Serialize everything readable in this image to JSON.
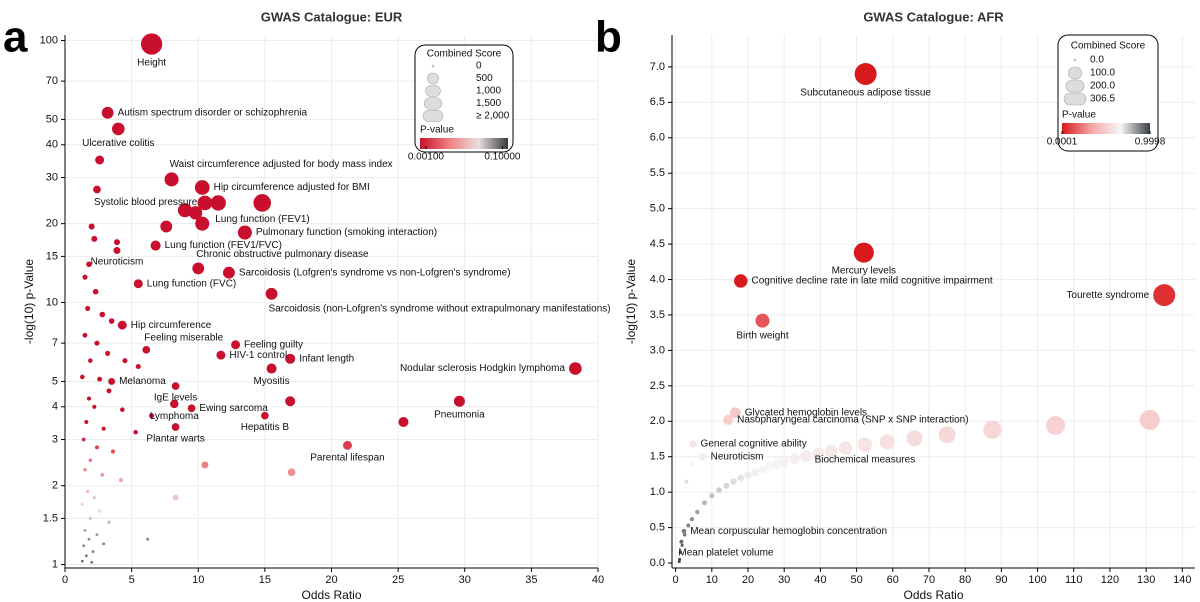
{
  "chart_data": [
    {
      "type": "scatter",
      "panel_label": "a",
      "title": "GWAS Catalogue: EUR",
      "x_label": "Odds Ratio",
      "y_label": "-log(10) p-Value",
      "log_y": true,
      "grid": true,
      "xlim": [
        0,
        40
      ],
      "ylim": [
        0.97,
        105
      ],
      "xticks": [
        0,
        5,
        10,
        15,
        20,
        25,
        30,
        35,
        40
      ],
      "yticks": [
        1,
        1.5,
        2,
        3,
        4,
        5,
        7,
        10,
        15,
        20,
        30,
        40,
        50,
        70,
        100
      ],
      "x": [
        6.5,
        3.2,
        4.0,
        2.6,
        8.0,
        10.3,
        2.4,
        9.0,
        9.8,
        10.5,
        11.5,
        14.8,
        10.3,
        7.6,
        13.5,
        6.8,
        10.0,
        12.3,
        3.9,
        5.5,
        15.5,
        4.3,
        6.1,
        12.8,
        11.7,
        16.9,
        15.5,
        38.3,
        3.5,
        8.3,
        29.6,
        9.5,
        8.2,
        15.0,
        16.9,
        8.3,
        21.2,
        25.4,
        17.0,
        10.5,
        8.3,
        2.0,
        2.2,
        1.8,
        3.9,
        1.5,
        2.3,
        1.7,
        2.8,
        3.5,
        1.5,
        2.4,
        3.2,
        1.9,
        4.5,
        5.5,
        1.3,
        2.6,
        3.3,
        1.8,
        2.2,
        4.3,
        6.5,
        1.6,
        2.9,
        5.3,
        1.4,
        2.4,
        3.6,
        1.9,
        1.5,
        2.8,
        4.2,
        1.7,
        2.2,
        1.3,
        2.6,
        1.9,
        3.3,
        1.5,
        2.4,
        1.8,
        1.4,
        2.1,
        1.6,
        2.9,
        6.2,
        1.3,
        2.0
      ],
      "values": [
        97,
        53,
        46,
        35,
        29.5,
        27.5,
        27,
        22.5,
        22,
        24,
        24,
        24,
        20,
        19.5,
        18.5,
        16.5,
        13.5,
        13,
        15.8,
        11.8,
        10.8,
        8.2,
        6.6,
        6.9,
        6.3,
        6.1,
        5.6,
        5.6,
        5.0,
        4.8,
        4.2,
        3.95,
        4.1,
        3.7,
        4.2,
        3.35,
        2.85,
        3.5,
        2.25,
        2.4,
        1.8,
        19.5,
        17.5,
        14,
        17,
        12.5,
        11,
        9.5,
        9,
        8.5,
        7.5,
        7,
        6.4,
        6,
        6,
        5.7,
        5.2,
        5.1,
        4.6,
        4.3,
        4,
        3.9,
        3.7,
        3.5,
        3.3,
        3.2,
        3,
        2.8,
        2.7,
        2.5,
        2.3,
        2.2,
        2.1,
        1.9,
        1.8,
        1.7,
        1.6,
        1.5,
        1.45,
        1.35,
        1.3,
        1.25,
        1.18,
        1.12,
        1.08,
        1.2,
        1.25,
        1.03,
        1.02
      ],
      "sizes": [
        2300,
        600,
        700,
        300,
        900,
        1000,
        200,
        900,
        800,
        1000,
        1100,
        1500,
        900,
        600,
        900,
        400,
        600,
        600,
        150,
        300,
        600,
        300,
        200,
        300,
        300,
        400,
        400,
        700,
        150,
        200,
        500,
        200,
        250,
        200,
        400,
        200,
        300,
        400,
        200,
        150,
        100,
        100,
        100,
        80,
        100,
        60,
        80,
        60,
        80,
        80,
        50,
        60,
        60,
        40,
        60,
        60,
        40,
        50,
        50,
        30,
        30,
        40,
        60,
        25,
        30,
        40,
        20,
        25,
        30,
        15,
        15,
        20,
        25,
        10,
        10,
        8,
        10,
        8,
        10,
        5,
        5,
        5,
        3,
        3,
        3,
        5,
        8,
        2,
        2
      ],
      "labels": [
        "Height",
        "Autism spectrum disorder or schizophrenia",
        "Ulcerative colitis",
        null,
        "Waist circumference adjusted for body mass index",
        "Hip circumference adjusted for BMI",
        "Systolic blood pressure",
        null,
        null,
        null,
        "Lung function (FEV1)",
        null,
        null,
        null,
        "Pulmonary function (smoking interaction)",
        "Lung function (FEV1/FVC)",
        "Chronic obstructive pulmonary disease",
        "Sarcoidosis (Lofgren's syndrome vs non-Lofgren's syndrome)",
        "Neuroticism",
        "Lung function (FVC)",
        "Sarcoidosis (non-Lofgren's syndrome without extrapulmonary manifestations)",
        "Hip circumference",
        "Feeling miserable",
        "Feeling guilty",
        "HIV-1 control",
        "Infant length",
        "Myositis",
        "Nodular sclerosis Hodgkin lymphoma",
        "Melanoma",
        "IgE levels",
        "Pneumonia",
        "Ewing sarcoma",
        "Lymphoma",
        "Hepatitis B",
        null,
        "Plantar warts",
        "Parental lifespan",
        null,
        null,
        null,
        null,
        null,
        null,
        null,
        null,
        null,
        null,
        null,
        null,
        null,
        null,
        null,
        null,
        null,
        null,
        null,
        null,
        null,
        null,
        null,
        null,
        null,
        null,
        null,
        null,
        null,
        null,
        null,
        null,
        null,
        null,
        null,
        null,
        null,
        null,
        null,
        null,
        null,
        null,
        null,
        null,
        null,
        null,
        null,
        null,
        null,
        null,
        null,
        null
      ],
      "size_legend": {
        "title": "Combined Score",
        "values": [
          0,
          500,
          {
            "value": 1000,
            "label": "1,000"
          },
          {
            "value": 1500,
            "label": "1,500"
          },
          {
            "value": 2000,
            "label": "≥ 2,000"
          }
        ]
      },
      "color_legend": {
        "title": "P-value",
        "colors": [
          "#c8102e",
          "#f08080",
          "#e8dede",
          "#3a3a3a"
        ],
        "clim": [
          0.0007,
          0.14
        ],
        "ticks": [
          {
            "value": 0.001,
            "label": "0.00100"
          },
          {
            "value": 0.1,
            "label": "0.10000"
          }
        ]
      }
    },
    {
      "type": "scatter",
      "panel_label": "b",
      "title": "GWAS Catalogue: AFR",
      "x_label": "Odds Ratio",
      "y_label": "-log(10) p-Value",
      "log_y": false,
      "grid": true,
      "xlim": [
        -1,
        143.5
      ],
      "ylim": [
        -0.07,
        7.45
      ],
      "xticks": [
        0,
        10,
        20,
        30,
        40,
        50,
        60,
        70,
        80,
        90,
        100,
        110,
        120,
        130,
        140
      ],
      "yticks": [
        {
          "value": 0,
          "label": "0.0"
        },
        0.5,
        {
          "value": 1,
          "label": "1.0"
        },
        1.5,
        {
          "value": 2,
          "label": "2.0"
        },
        2.5,
        {
          "value": 3,
          "label": "3.0"
        },
        3.5,
        {
          "value": 4,
          "label": "4.0"
        },
        4.5,
        {
          "value": 5,
          "label": "5.0"
        },
        5.5,
        {
          "value": 6,
          "label": "6.0"
        },
        6.5,
        {
          "value": 7,
          "label": "7.0"
        }
      ],
      "x": [
        52.5,
        52,
        18,
        135,
        24,
        16.5,
        14.5,
        4.8,
        7.5,
        52.3,
        2.3,
        1.6,
        131,
        105,
        87.5,
        75,
        66,
        58.5,
        47,
        43,
        39.5,
        36,
        33,
        30,
        28,
        26,
        24,
        22,
        20,
        18,
        16,
        14,
        12,
        10,
        8,
        6,
        4.5,
        3.5,
        2.5,
        1.8,
        1.3,
        1.1,
        1.0,
        3.0,
        4.5
      ],
      "values": [
        6.9,
        4.38,
        3.98,
        3.78,
        3.42,
        2.12,
        2.02,
        1.68,
        1.5,
        1.67,
        0.45,
        0.3,
        2.02,
        1.94,
        1.88,
        1.81,
        1.76,
        1.71,
        1.62,
        1.58,
        1.54,
        1.51,
        1.47,
        1.43,
        1.4,
        1.37,
        1.32,
        1.28,
        1.24,
        1.2,
        1.15,
        1.09,
        1.03,
        0.95,
        0.85,
        0.72,
        0.62,
        0.53,
        0.4,
        0.25,
        0.15,
        0.05,
        0.02,
        1.15,
        1.4
      ],
      "sizes": [
        306.5,
        250,
        100,
        306,
        110,
        60,
        50,
        20,
        25,
        120,
        5,
        3,
        250,
        220,
        200,
        170,
        150,
        130,
        100,
        90,
        80,
        75,
        60,
        50,
        40,
        35,
        30,
        25,
        20,
        18,
        15,
        12,
        10,
        8,
        6,
        5,
        4,
        3,
        2,
        1,
        1,
        1,
        0.5,
        3,
        4
      ],
      "labels": [
        "Subcutaneous adipose tissue",
        "Mercury levels",
        "Cognitive decline rate in late mild cognitive impairment",
        "Tourette syndrome",
        "Birth weight",
        "Glycated hemoglobin levels",
        "Nasopharyngeal carcinoma (SNP x SNP interaction)",
        "General cognitive ability",
        "Neuroticism",
        "Biochemical measures",
        "Mean corpuscular hemoglobin concentration",
        "Mean platelet volume",
        null,
        null,
        null,
        null,
        null,
        null,
        null,
        null,
        null,
        null,
        null,
        null,
        null,
        null,
        null,
        null,
        null,
        null,
        null,
        null,
        null,
        null,
        null,
        null,
        null,
        null,
        null,
        null,
        null,
        null,
        null,
        null,
        null
      ],
      "size_legend": {
        "title": "Combined Score",
        "values": [
          {
            "value": 0,
            "label": "0.0"
          },
          {
            "value": 100,
            "label": "100.0"
          },
          {
            "value": 200,
            "label": "200.0"
          },
          306.5
        ]
      },
      "color_legend": {
        "title": "P-value",
        "colors": [
          "#d7191c",
          "#f4a6a6",
          "#f7f7f7",
          "#3a3f45"
        ],
        "clim": [
          0.0001,
          0.9998
        ],
        "ticks": [
          {
            "value": 0.0001,
            "label": "0.0001"
          },
          {
            "value": 0.9998,
            "label": "0.9998"
          }
        ]
      }
    }
  ]
}
